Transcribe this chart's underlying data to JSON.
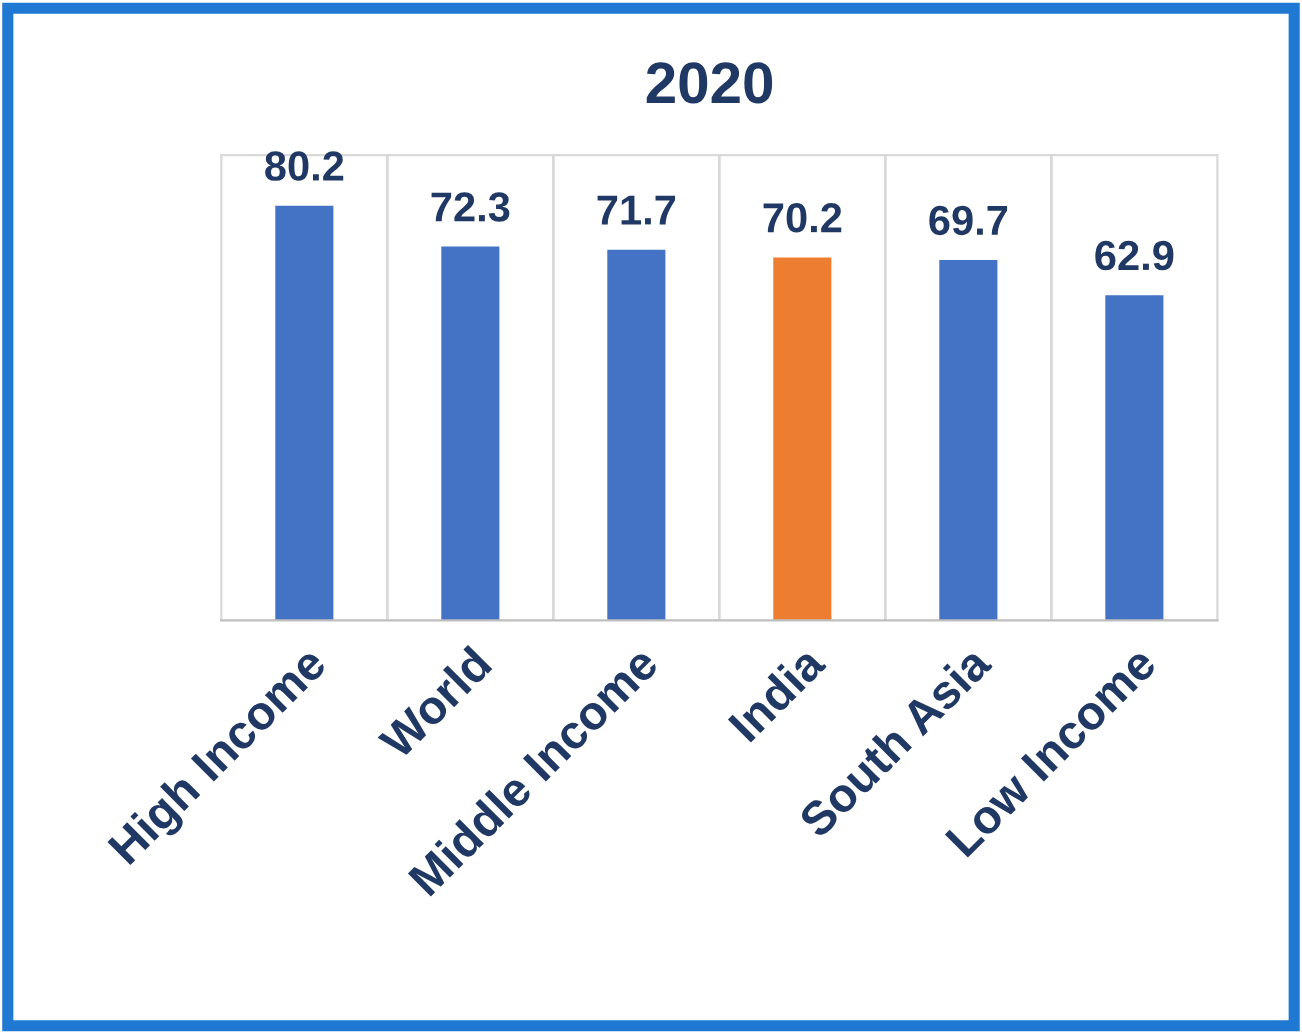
{
  "chart_data": {
    "type": "bar",
    "title": "2020",
    "categories": [
      "High Income",
      "World",
      "Middle Income",
      "India",
      "South Asia",
      "Low Income"
    ],
    "values": [
      80.2,
      72.3,
      71.7,
      70.2,
      69.7,
      62.9
    ],
    "colors": [
      "#4472c4",
      "#4472c4",
      "#4472c4",
      "#ed7d31",
      "#4472c4",
      "#4472c4"
    ],
    "ylim": [
      0,
      90
    ],
    "tick_labels": "x",
    "data_labels": true
  }
}
